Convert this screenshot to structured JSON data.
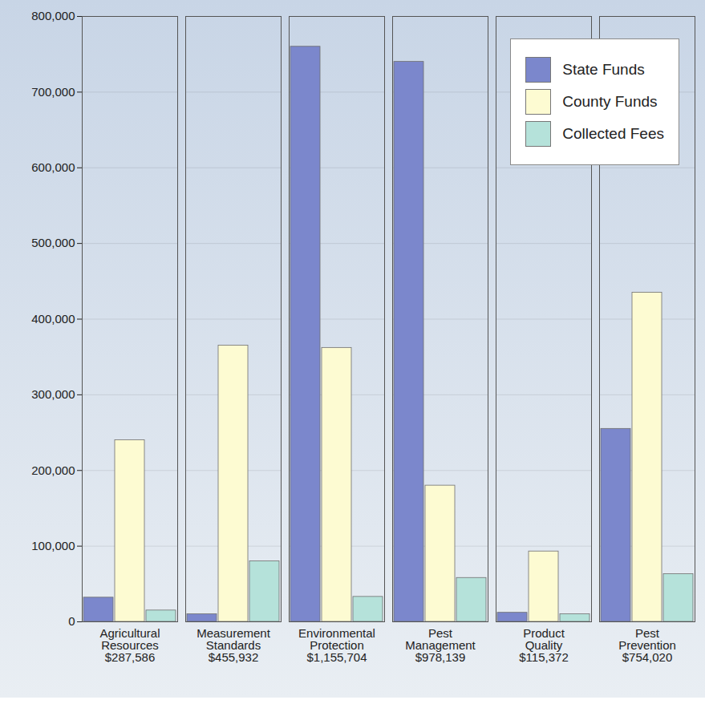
{
  "chart_data": {
    "type": "bar",
    "categories": [
      "Agricultural\nResources\n$287,586",
      "Measurement\nStandards\n$455,932",
      "Environmental\nProtection\n$1,155,704",
      "Pest\nManagement\n$978,139",
      "Product\nQuality\n$115,372",
      "Pest\nPrevention\n$754,020"
    ],
    "series": [
      {
        "name": "State Funds",
        "color": "#7b87cc",
        "values": [
          32000,
          10000,
          760000,
          740000,
          12000,
          255000
        ]
      },
      {
        "name": "County Funds",
        "color": "#fdfbd2",
        "values": [
          240000,
          365000,
          362000,
          180000,
          93000,
          435000
        ]
      },
      {
        "name": "Collected Fees",
        "color": "#b5e2da",
        "values": [
          15000,
          80000,
          33000,
          58000,
          10000,
          63000
        ]
      }
    ],
    "ylim": [
      0,
      800000
    ],
    "yticks": [
      0,
      {
        "value": 100000,
        "label": "100,000"
      },
      {
        "value": 200000,
        "label": "200,000"
      },
      {
        "value": 300000,
        "label": "300,000"
      },
      {
        "value": 400000,
        "label": "400,000"
      },
      {
        "value": 500000,
        "label": "500,000"
      },
      {
        "value": 600000,
        "label": "600,000"
      },
      {
        "value": 700000,
        "label": "700,000"
      },
      {
        "value": 800000,
        "label": "800,000"
      }
    ],
    "grid": true,
    "legend": "top-right"
  }
}
